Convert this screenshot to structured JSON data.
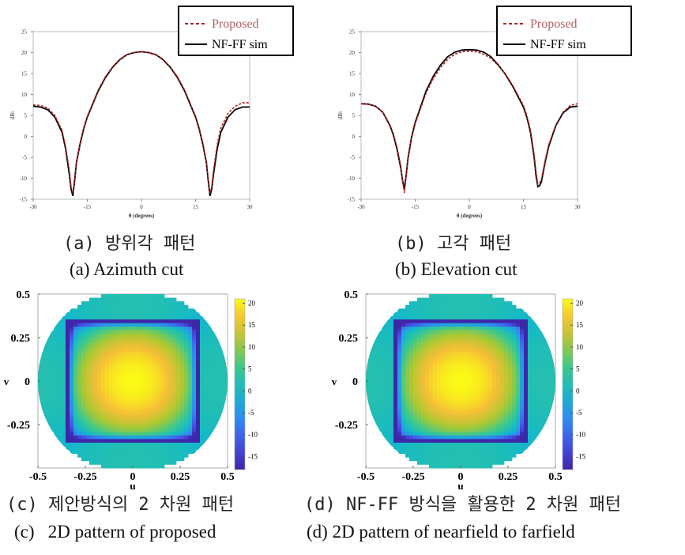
{
  "chart_data": [
    {
      "id": "a",
      "type": "line",
      "xlabel": "θ (degrees)",
      "ylabel": "dBi",
      "xlim": [
        -30,
        30
      ],
      "ylim": [
        -15,
        25
      ],
      "xticks": [
        "-30",
        "-15",
        "0",
        "15",
        "30"
      ],
      "yticks": [
        "25",
        "20",
        "15",
        "10",
        "5",
        "0",
        "-5",
        "-10",
        "-15"
      ],
      "legend": {
        "placement": "top-right",
        "entries": [
          "Proposed",
          "NF-FF sim"
        ]
      },
      "series": [
        {
          "name": "Proposed",
          "color": "#b22222",
          "dash": true,
          "x": [
            -30,
            -28,
            -26,
            -24,
            -22,
            -21,
            -20,
            -19.5,
            -19,
            -18.5,
            -18,
            -17,
            -16,
            -15,
            -12,
            -10,
            -8,
            -6,
            -4,
            -2,
            0,
            2,
            4,
            6,
            8,
            10,
            12,
            15,
            16,
            17,
            18,
            18.5,
            19,
            19.5,
            20,
            21,
            22,
            24,
            26,
            28,
            30
          ],
          "y": [
            7.5,
            7.4,
            6.8,
            5.0,
            1.5,
            -2.5,
            -8,
            -12,
            -13.5,
            -10,
            -6,
            -1.5,
            2.0,
            4.8,
            11.0,
            14.2,
            16.6,
            18.4,
            19.5,
            20.0,
            20.2,
            20.0,
            19.5,
            18.4,
            16.6,
            14.2,
            11.0,
            4.8,
            2.0,
            -1.5,
            -6,
            -10,
            -13.5,
            -12,
            -8,
            -2,
            2,
            5.5,
            7.2,
            8.0,
            8.0
          ]
        },
        {
          "name": "NF-FF sim",
          "color": "#000000",
          "dash": false,
          "x": [
            -30,
            -28,
            -26,
            -24,
            -22,
            -21,
            -20,
            -19.5,
            -19,
            -18.5,
            -18,
            -17,
            -16,
            -15,
            -12,
            -10,
            -8,
            -6,
            -4,
            -2,
            0,
            2,
            4,
            6,
            8,
            10,
            12,
            15,
            16,
            17,
            18,
            18.5,
            19,
            19.5,
            20,
            21,
            22,
            24,
            26,
            28,
            30
          ],
          "y": [
            7.2,
            7.0,
            6.4,
            4.6,
            1.0,
            -3.0,
            -9,
            -12.5,
            -14.2,
            -10.5,
            -6.2,
            -1.8,
            1.8,
            4.6,
            10.8,
            14.0,
            16.5,
            18.3,
            19.5,
            20.0,
            20.2,
            20.0,
            19.5,
            18.3,
            16.5,
            14.0,
            10.8,
            4.6,
            1.8,
            -1.8,
            -6.2,
            -10.5,
            -14.2,
            -12.5,
            -9,
            -3,
            1.0,
            4.6,
            6.4,
            7.0,
            7.0
          ]
        }
      ]
    },
    {
      "id": "b",
      "type": "line",
      "xlabel": "θ (degrees)",
      "ylabel": "dBi",
      "xlim": [
        -30,
        30
      ],
      "ylim": [
        -15,
        25
      ],
      "xticks": [
        "-30",
        "-15",
        "0",
        "15",
        "30"
      ],
      "yticks": [
        "25",
        "20",
        "15",
        "10",
        "5",
        "0",
        "-5",
        "-10",
        "-15"
      ],
      "legend": {
        "placement": "top-right",
        "entries": [
          "Proposed",
          "NF-FF sim"
        ]
      },
      "series": [
        {
          "name": "Proposed",
          "color": "#b22222",
          "dash": true,
          "x": [
            -30,
            -28,
            -26,
            -24,
            -22,
            -21,
            -20,
            -19,
            -18.5,
            -18,
            -17.5,
            -17,
            -16,
            -15,
            -12,
            -10,
            -8,
            -6,
            -4,
            -2,
            0,
            2,
            4,
            6,
            8,
            10,
            12,
            15,
            16,
            17,
            18,
            18.5,
            19,
            19.5,
            20,
            21,
            22,
            24,
            26,
            28,
            30
          ],
          "y": [
            7.8,
            7.7,
            7.2,
            5.8,
            2.8,
            0.5,
            -2.8,
            -7,
            -10.5,
            -13.5,
            -9.5,
            -5.5,
            -0.5,
            3.0,
            10.3,
            13.8,
            16.4,
            18.4,
            19.6,
            20.2,
            20.3,
            20.2,
            19.6,
            18.6,
            16.9,
            14.9,
            12.2,
            7.4,
            4.8,
            1.3,
            -4.5,
            -8.5,
            -11.5,
            -11.2,
            -10.2,
            -5.8,
            -2.0,
            2.8,
            5.8,
            7.4,
            7.8
          ]
        },
        {
          "name": "NF-FF sim",
          "color": "#000000",
          "dash": false,
          "x": [
            -30,
            -28,
            -26,
            -24,
            -22,
            -21,
            -20,
            -19,
            -18.5,
            -18,
            -17.5,
            -17,
            -16,
            -15,
            -12,
            -10,
            -8,
            -6,
            -4,
            -2,
            0,
            2,
            4,
            6,
            8,
            10,
            12,
            15,
            16,
            17,
            18,
            18.5,
            19,
            19.5,
            20,
            21,
            22,
            24,
            26,
            28,
            30
          ],
          "y": [
            7.8,
            7.7,
            7.2,
            5.8,
            2.6,
            0.2,
            -3.2,
            -7.5,
            -10.5,
            -12.5,
            -9.2,
            -5.2,
            -0.2,
            3.3,
            10.8,
            14.3,
            17.0,
            19.0,
            20.1,
            20.6,
            20.7,
            20.6,
            20.1,
            19.0,
            17.1,
            14.8,
            12.0,
            7.0,
            4.4,
            0.8,
            -5.2,
            -9.5,
            -12.0,
            -11.8,
            -10.8,
            -6.2,
            -2.4,
            2.6,
            5.6,
            7.0,
            7.2
          ]
        }
      ]
    },
    {
      "id": "c",
      "type": "heatmap",
      "xlabel": "u",
      "ylabel": "v",
      "xlim": [
        -0.5,
        0.5
      ],
      "ylim": [
        -0.5,
        0.5
      ],
      "xticks": [
        "-0.5",
        "-0.25",
        "0",
        "0.25",
        "0.5"
      ],
      "yticks": [
        "0.5",
        "0.25",
        "0",
        "-0.25"
      ],
      "colorbar_ticks": [
        "20",
        "15",
        "10",
        "5",
        "0",
        "-5",
        "-10",
        "-15"
      ],
      "colorbar_range": [
        -18,
        21
      ]
    },
    {
      "id": "d",
      "type": "heatmap",
      "xlabel": "u",
      "ylabel": "v",
      "xlim": [
        -0.5,
        0.5
      ],
      "ylim": [
        -0.5,
        0.5
      ],
      "xticks": [
        "-0.5",
        "-0.25",
        "0",
        "0.25",
        "0.5"
      ],
      "yticks": [
        "0.5",
        "0.25",
        "0",
        "-0.25"
      ],
      "colorbar_ticks": [
        "20",
        "15",
        "10",
        "5",
        "0",
        "-5",
        "-10",
        "-15"
      ],
      "colorbar_range": [
        -18,
        21
      ]
    }
  ],
  "captions": {
    "a_ko": "(a) 방위각 패턴",
    "a_en": "(a) Azimuth cut",
    "b_ko": "(b) 고각 패턴",
    "b_en": "(b) Elevation cut",
    "c_ko": "(c) 제안방식의 2 차원 패턴",
    "c_en": "(c)   2D pattern of proposed",
    "d_ko": "(d) NF-FF 방식을 활용한 2 차원 패턴",
    "d_en": "(d) 2D pattern of nearfield to farfield"
  }
}
